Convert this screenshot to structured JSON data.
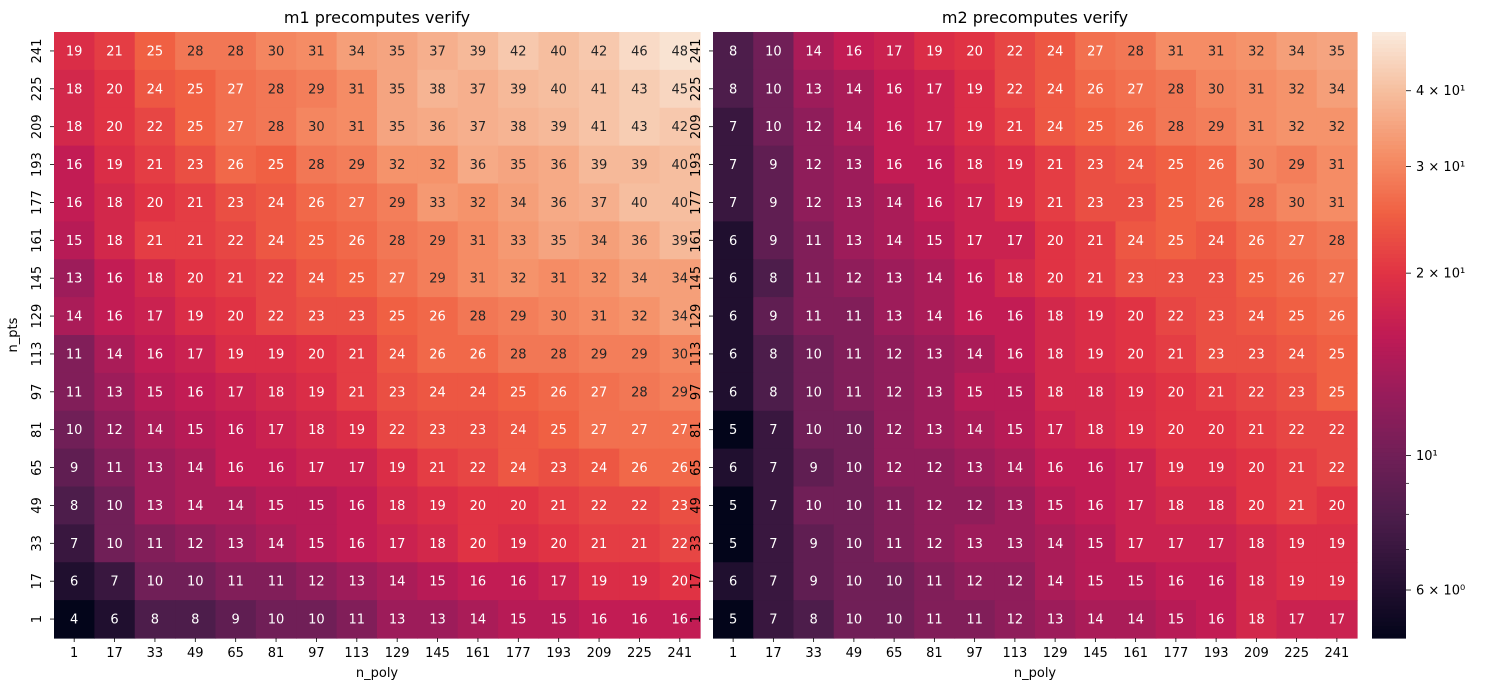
{
  "chart_data": [
    {
      "type": "heatmap",
      "title": "m1 precomputes verify",
      "xlabel": "n_poly",
      "ylabel": "n_pts",
      "x": [
        "1",
        "17",
        "33",
        "49",
        "65",
        "81",
        "97",
        "113",
        "129",
        "145",
        "161",
        "177",
        "193",
        "209",
        "225",
        "241"
      ],
      "y": [
        "241",
        "225",
        "209",
        "193",
        "177",
        "161",
        "145",
        "129",
        "113",
        "97",
        "81",
        "65",
        "49",
        "33",
        "17",
        "1"
      ],
      "values": [
        [
          19,
          21,
          25,
          28,
          28,
          30,
          31,
          34,
          35,
          37,
          39,
          42,
          40,
          42,
          46,
          48
        ],
        [
          18,
          20,
          24,
          25,
          27,
          28,
          29,
          31,
          35,
          38,
          37,
          39,
          40,
          41,
          43,
          45
        ],
        [
          18,
          20,
          22,
          25,
          27,
          28,
          30,
          31,
          35,
          36,
          37,
          38,
          39,
          41,
          43,
          42
        ],
        [
          16,
          19,
          21,
          23,
          26,
          25,
          28,
          29,
          32,
          32,
          36,
          35,
          36,
          39,
          39,
          40
        ],
        [
          16,
          18,
          20,
          21,
          23,
          24,
          26,
          27,
          29,
          33,
          32,
          34,
          36,
          37,
          40,
          40
        ],
        [
          15,
          18,
          21,
          21,
          22,
          24,
          25,
          26,
          28,
          29,
          31,
          33,
          35,
          34,
          36,
          39
        ],
        [
          13,
          16,
          18,
          20,
          21,
          22,
          24,
          25,
          27,
          29,
          31,
          32,
          31,
          32,
          34,
          34
        ],
        [
          14,
          16,
          17,
          19,
          20,
          22,
          23,
          23,
          25,
          26,
          28,
          29,
          30,
          31,
          32,
          34
        ],
        [
          11,
          14,
          16,
          17,
          19,
          19,
          20,
          21,
          24,
          26,
          26,
          28,
          28,
          29,
          29,
          30
        ],
        [
          11,
          13,
          15,
          16,
          17,
          18,
          19,
          21,
          23,
          24,
          24,
          25,
          26,
          27,
          28,
          29
        ],
        [
          10,
          12,
          14,
          15,
          16,
          17,
          18,
          19,
          22,
          23,
          23,
          24,
          25,
          27,
          27,
          27
        ],
        [
          9,
          11,
          13,
          14,
          16,
          16,
          17,
          17,
          19,
          21,
          22,
          24,
          23,
          24,
          26,
          26
        ],
        [
          8,
          10,
          13,
          14,
          14,
          15,
          15,
          16,
          18,
          19,
          20,
          20,
          21,
          22,
          22,
          23
        ],
        [
          7,
          10,
          11,
          12,
          13,
          14,
          15,
          16,
          17,
          18,
          20,
          19,
          20,
          21,
          21,
          22
        ],
        [
          6,
          7,
          10,
          10,
          11,
          11,
          12,
          13,
          14,
          15,
          16,
          16,
          17,
          19,
          19,
          20
        ],
        [
          4,
          6,
          8,
          8,
          9,
          10,
          10,
          11,
          13,
          13,
          14,
          15,
          15,
          16,
          16,
          16
        ]
      ]
    },
    {
      "type": "heatmap",
      "title": "m2 precomputes verify",
      "xlabel": "n_poly",
      "ylabel": "",
      "x": [
        "1",
        "17",
        "33",
        "49",
        "65",
        "81",
        "97",
        "113",
        "129",
        "145",
        "161",
        "177",
        "193",
        "209",
        "225",
        "241"
      ],
      "y": [
        "241",
        "225",
        "209",
        "193",
        "177",
        "161",
        "145",
        "129",
        "113",
        "97",
        "81",
        "65",
        "49",
        "33",
        "17",
        "1"
      ],
      "values": [
        [
          8,
          10,
          14,
          16,
          17,
          19,
          20,
          22,
          24,
          27,
          28,
          31,
          31,
          32,
          34,
          35
        ],
        [
          8,
          10,
          13,
          14,
          16,
          17,
          19,
          22,
          24,
          26,
          27,
          28,
          30,
          31,
          32,
          34
        ],
        [
          7,
          10,
          12,
          14,
          16,
          17,
          19,
          21,
          24,
          25,
          26,
          28,
          29,
          31,
          32,
          32
        ],
        [
          7,
          9,
          12,
          13,
          16,
          16,
          18,
          19,
          21,
          23,
          24,
          25,
          26,
          30,
          29,
          31
        ],
        [
          7,
          9,
          12,
          13,
          14,
          16,
          17,
          19,
          21,
          23,
          23,
          25,
          26,
          28,
          30,
          31
        ],
        [
          6,
          9,
          11,
          13,
          14,
          15,
          17,
          17,
          20,
          21,
          24,
          25,
          24,
          26,
          27,
          28
        ],
        [
          6,
          8,
          11,
          12,
          13,
          14,
          16,
          18,
          20,
          21,
          23,
          23,
          23,
          25,
          26,
          27
        ],
        [
          6,
          9,
          11,
          11,
          13,
          14,
          16,
          16,
          18,
          19,
          20,
          22,
          23,
          24,
          25,
          26
        ],
        [
          6,
          8,
          10,
          11,
          12,
          13,
          14,
          16,
          18,
          19,
          20,
          21,
          23,
          23,
          24,
          25
        ],
        [
          6,
          8,
          10,
          11,
          12,
          13,
          15,
          15,
          18,
          18,
          19,
          20,
          21,
          22,
          23,
          25
        ],
        [
          5,
          7,
          10,
          10,
          12,
          13,
          14,
          15,
          17,
          18,
          19,
          20,
          20,
          21,
          22,
          22
        ],
        [
          6,
          7,
          9,
          10,
          12,
          12,
          13,
          14,
          16,
          16,
          17,
          19,
          19,
          20,
          21,
          22
        ],
        [
          5,
          7,
          10,
          10,
          11,
          12,
          12,
          13,
          15,
          16,
          17,
          18,
          18,
          20,
          21,
          20
        ],
        [
          5,
          7,
          9,
          10,
          11,
          12,
          13,
          13,
          14,
          15,
          17,
          17,
          17,
          18,
          19,
          19
        ],
        [
          6,
          7,
          9,
          10,
          10,
          11,
          12,
          12,
          14,
          15,
          15,
          16,
          16,
          18,
          19,
          19
        ],
        [
          5,
          7,
          8,
          10,
          10,
          11,
          11,
          12,
          13,
          14,
          14,
          15,
          16,
          18,
          17,
          17
        ]
      ]
    }
  ],
  "colorbar": {
    "scale": "log",
    "range": [
      5,
      50
    ],
    "colormap": "rocket",
    "major_ticks": [
      {
        "value": 6,
        "label": "6 × 10⁰"
      },
      {
        "value": 10,
        "label": "10¹"
      },
      {
        "value": 20,
        "label": "2 × 10¹"
      },
      {
        "value": 30,
        "label": "3 × 10¹"
      },
      {
        "value": 40,
        "label": "4 × 10¹"
      }
    ],
    "minor_ticks": [
      7,
      8,
      9
    ]
  }
}
